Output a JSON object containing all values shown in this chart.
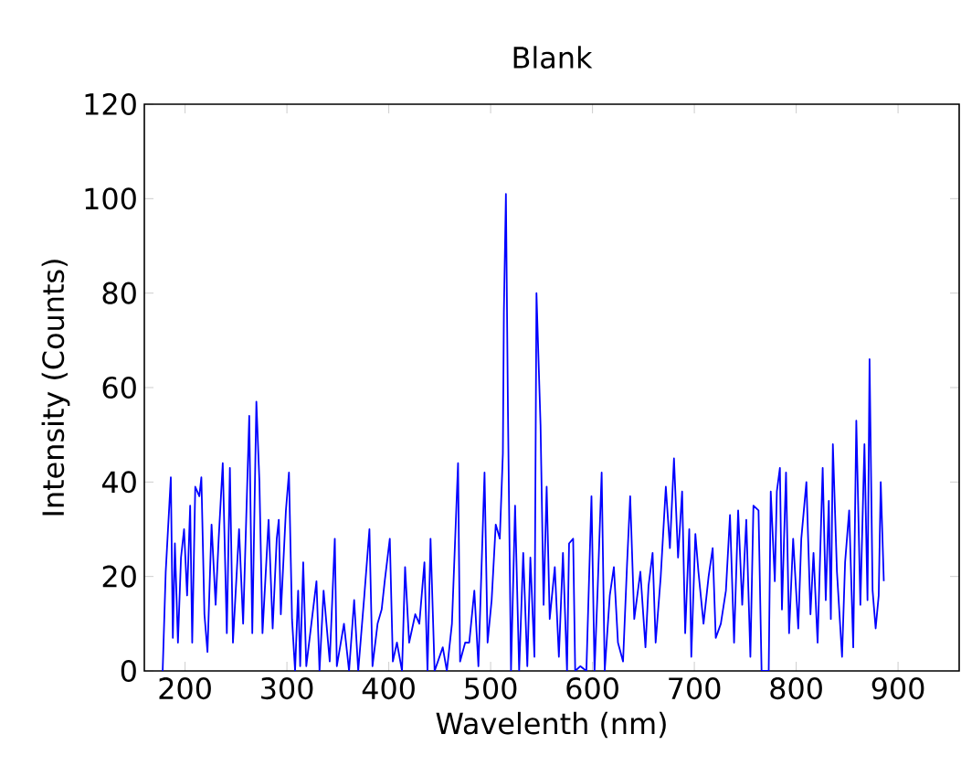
{
  "chart_data": {
    "type": "line",
    "title": "Blank",
    "xlabel": "Wavelenth (nm)",
    "ylabel": "Intensity (Counts)",
    "xlim": [
      160,
      960
    ],
    "ylim": [
      0,
      120
    ],
    "xticks": [
      200,
      300,
      400,
      500,
      600,
      700,
      800,
      900
    ],
    "yticks": [
      0,
      20,
      40,
      60,
      80,
      100,
      120
    ],
    "grid": false,
    "marker": "none",
    "line_style": "solid",
    "series": [
      {
        "color": "#0000ff",
        "x": [
          178,
          181,
          186,
          188,
          190,
          193,
          196,
          199,
          202,
          205,
          207,
          210,
          214,
          216,
          219,
          222,
          226,
          230,
          233,
          237,
          241,
          244,
          247,
          253,
          257,
          260,
          263,
          266,
          270,
          273,
          276,
          282,
          286,
          290,
          292,
          294,
          299,
          302,
          305,
          308,
          311,
          313,
          316,
          319,
          324,
          329,
          332,
          336,
          342,
          347,
          349,
          356,
          361,
          366,
          370,
          376,
          381,
          384,
          389,
          393,
          396,
          401,
          404,
          408,
          413,
          416,
          420,
          426,
          430,
          435,
          438,
          441,
          445,
          453,
          457,
          462,
          468,
          470,
          475,
          479,
          484,
          488,
          494,
          497,
          501,
          505,
          509,
          512,
          513,
          515,
          517,
          520,
          524,
          528,
          532,
          536,
          539,
          543,
          545,
          549,
          552,
          555,
          558,
          563,
          567,
          571,
          575,
          577,
          581,
          583,
          588,
          594,
          599,
          602,
          605,
          609,
          612,
          617,
          621,
          625,
          630,
          634,
          637,
          641,
          647,
          652,
          655,
          659,
          662,
          667,
          672,
          676,
          680,
          684,
          688,
          691,
          695,
          697,
          701,
          704,
          709,
          714,
          718,
          721,
          726,
          731,
          735,
          739,
          743,
          747,
          751,
          755,
          758,
          763,
          766,
          773,
          775,
          779,
          781,
          784,
          786,
          790,
          793,
          797,
          802,
          805,
          810,
          814,
          817,
          821,
          826,
          829,
          832,
          834,
          836,
          840,
          845,
          848,
          852,
          856,
          859,
          863,
          867,
          870,
          872,
          875,
          878,
          881,
          883,
          886
        ],
        "values": [
          0,
          21,
          41,
          7,
          27,
          6,
          24,
          30,
          16,
          35,
          6,
          39,
          37,
          41,
          12,
          4,
          31,
          14,
          28,
          44,
          8,
          43,
          6,
          30,
          10,
          32,
          54,
          8,
          57,
          40,
          8,
          32,
          9,
          28,
          32,
          12,
          34,
          42,
          11,
          0,
          17,
          1,
          23,
          1,
          10,
          19,
          0,
          17,
          2,
          28,
          1,
          10,
          0,
          15,
          0,
          16,
          30,
          1,
          10,
          13,
          19,
          28,
          2,
          6,
          0,
          22,
          6,
          12,
          10,
          23,
          0,
          28,
          0,
          5,
          0,
          10,
          44,
          2,
          6,
          6,
          17,
          1,
          42,
          6,
          15,
          31,
          28,
          46,
          76,
          101,
          55,
          0,
          35,
          0,
          25,
          1,
          24,
          3,
          80,
          52,
          14,
          39,
          11,
          22,
          3,
          25,
          0,
          27,
          28,
          0,
          1,
          0,
          37,
          0,
          17,
          42,
          0,
          16,
          22,
          6,
          2,
          23,
          37,
          11,
          21,
          5,
          18,
          25,
          6,
          20,
          39,
          26,
          45,
          24,
          38,
          8,
          30,
          3,
          29,
          21,
          10,
          20,
          26,
          7,
          10,
          17,
          33,
          6,
          34,
          14,
          32,
          3,
          35,
          34,
          0,
          0,
          38,
          19,
          38,
          43,
          13,
          42,
          8,
          28,
          9,
          28,
          40,
          12,
          25,
          6,
          43,
          15,
          36,
          11,
          48,
          21,
          3,
          23,
          34,
          5,
          53,
          14,
          48,
          15,
          66,
          17,
          9,
          16,
          40,
          19
        ]
      }
    ]
  }
}
